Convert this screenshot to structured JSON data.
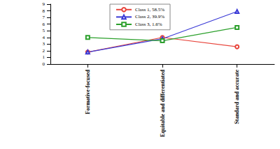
{
  "chart_data": {
    "type": "line",
    "categories": [
      "Formative-focused",
      "Equitable and differentiated",
      "Standard and accurate"
    ],
    "series": [
      {
        "name": "Class 1, 58.5%",
        "color": "#e8453c",
        "marker": "circle",
        "values": [
          1.8,
          4.0,
          2.6
        ]
      },
      {
        "name": "Class 2, 39.9%",
        "color": "#3a3ad6",
        "marker": "triangle",
        "values": [
          1.8,
          3.8,
          7.9
        ]
      },
      {
        "name": "Class 3, 1.6%",
        "color": "#2ca02c",
        "marker": "square",
        "values": [
          4.0,
          3.5,
          5.5
        ]
      }
    ],
    "ylim": [
      0,
      9
    ],
    "yticks": [
      0,
      1,
      2,
      3,
      4,
      5,
      6,
      7,
      8,
      9
    ],
    "grid": false,
    "legend": "top"
  }
}
